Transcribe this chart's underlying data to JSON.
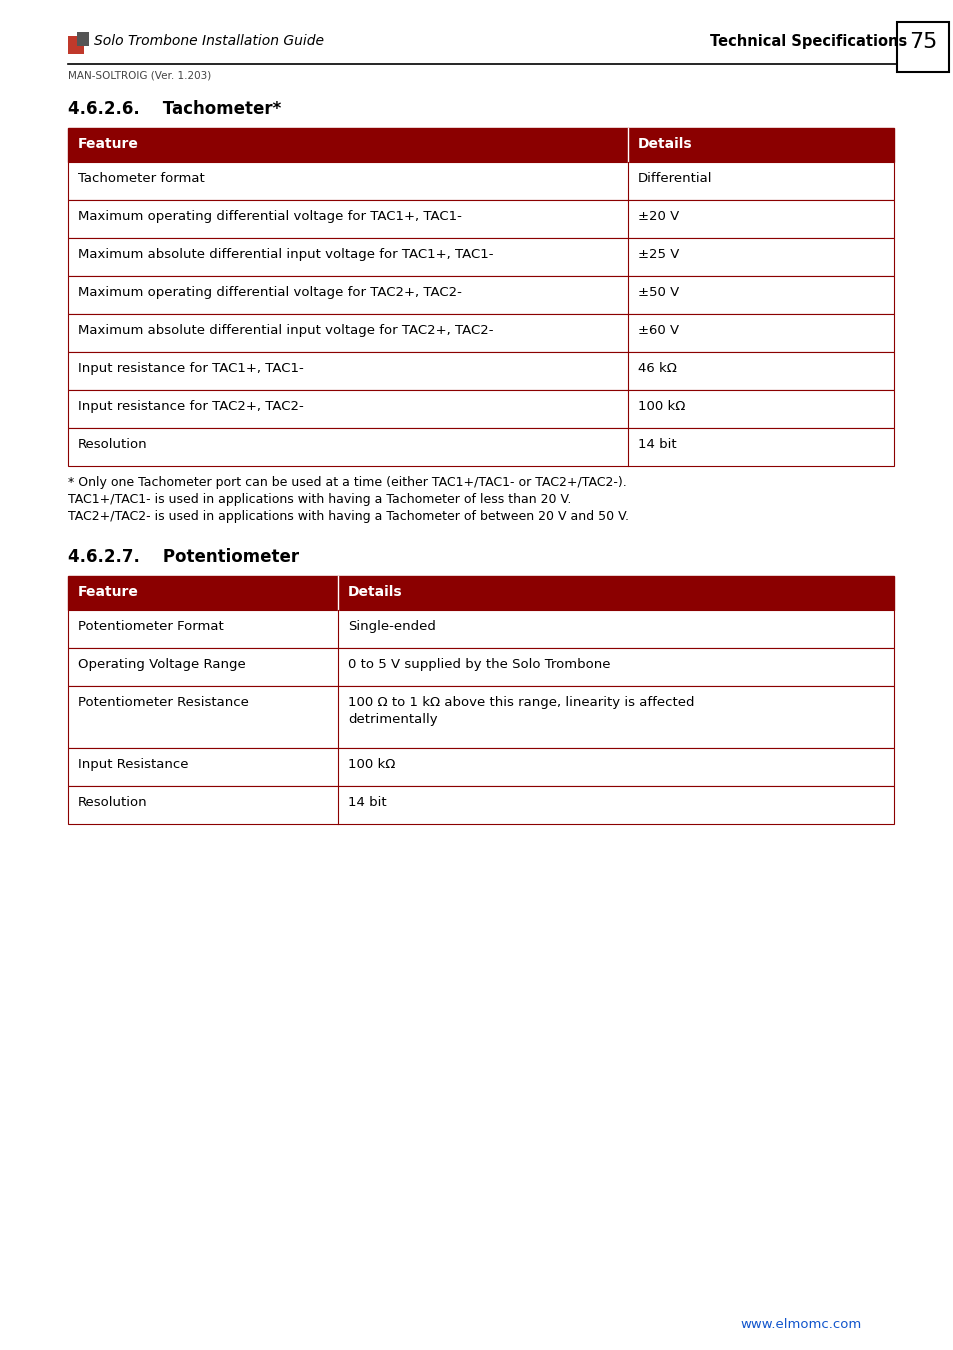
{
  "page_bg": "#ffffff",
  "header_left": "Solo Trombone Installation Guide",
  "header_right": "Technical Specifications",
  "header_subtitle": "MAN-SOLTROIG (Ver. 1.203)",
  "page_number": "75",
  "section1_title": "4.6.2.6.    Tachometer*",
  "section2_title": "4.6.2.7.    Potentiometer",
  "table_header_bg": "#8B0000",
  "table_border_color": "#8B0000",
  "tach_headers": [
    "Feature",
    "Details"
  ],
  "tach_rows": [
    [
      "Tachometer format",
      "Differential"
    ],
    [
      "Maximum operating differential voltage for TAC1+, TAC1-",
      "±20 V"
    ],
    [
      "Maximum absolute differential input voltage for TAC1+, TAC1-",
      "±25 V"
    ],
    [
      "Maximum operating differential voltage for TAC2+, TAC2-",
      "±50 V"
    ],
    [
      "Maximum absolute differential input voltage for TAC2+, TAC2-",
      "±60 V"
    ],
    [
      "Input resistance for TAC1+, TAC1-",
      "46 kΩ"
    ],
    [
      "Input resistance for TAC2+, TAC2-",
      "100 kΩ"
    ],
    [
      "Resolution",
      "14 bit"
    ]
  ],
  "tach_footnote1": "* Only one Tachometer port can be used at a time (either TAC1+/TAC1- or TAC2+/TAC2-).",
  "tach_footnote2": "TAC1+/TAC1- is used in applications with having a Tachometer of less than 20 V.",
  "tach_footnote3": "TAC2+/TAC2- is used in applications with having a Tachometer of between 20 V and 50 V.",
  "pot_headers": [
    "Feature",
    "Details"
  ],
  "pot_rows": [
    [
      "Potentiometer Format",
      "Single-ended"
    ],
    [
      "Operating Voltage Range",
      "0 to 5 V supplied by the Solo Trombone"
    ],
    [
      "Potentiometer Resistance",
      "100 Ω to 1 kΩ above this range, linearity is affected\ndetrimentally"
    ],
    [
      "Input Resistance",
      "100 kΩ"
    ],
    [
      "Resolution",
      "14 bit"
    ]
  ],
  "footer_url": "www.elmomc.com",
  "footer_url_color": "#1155CC",
  "logo_red": "#c0392b",
  "logo_gray": "#555555"
}
